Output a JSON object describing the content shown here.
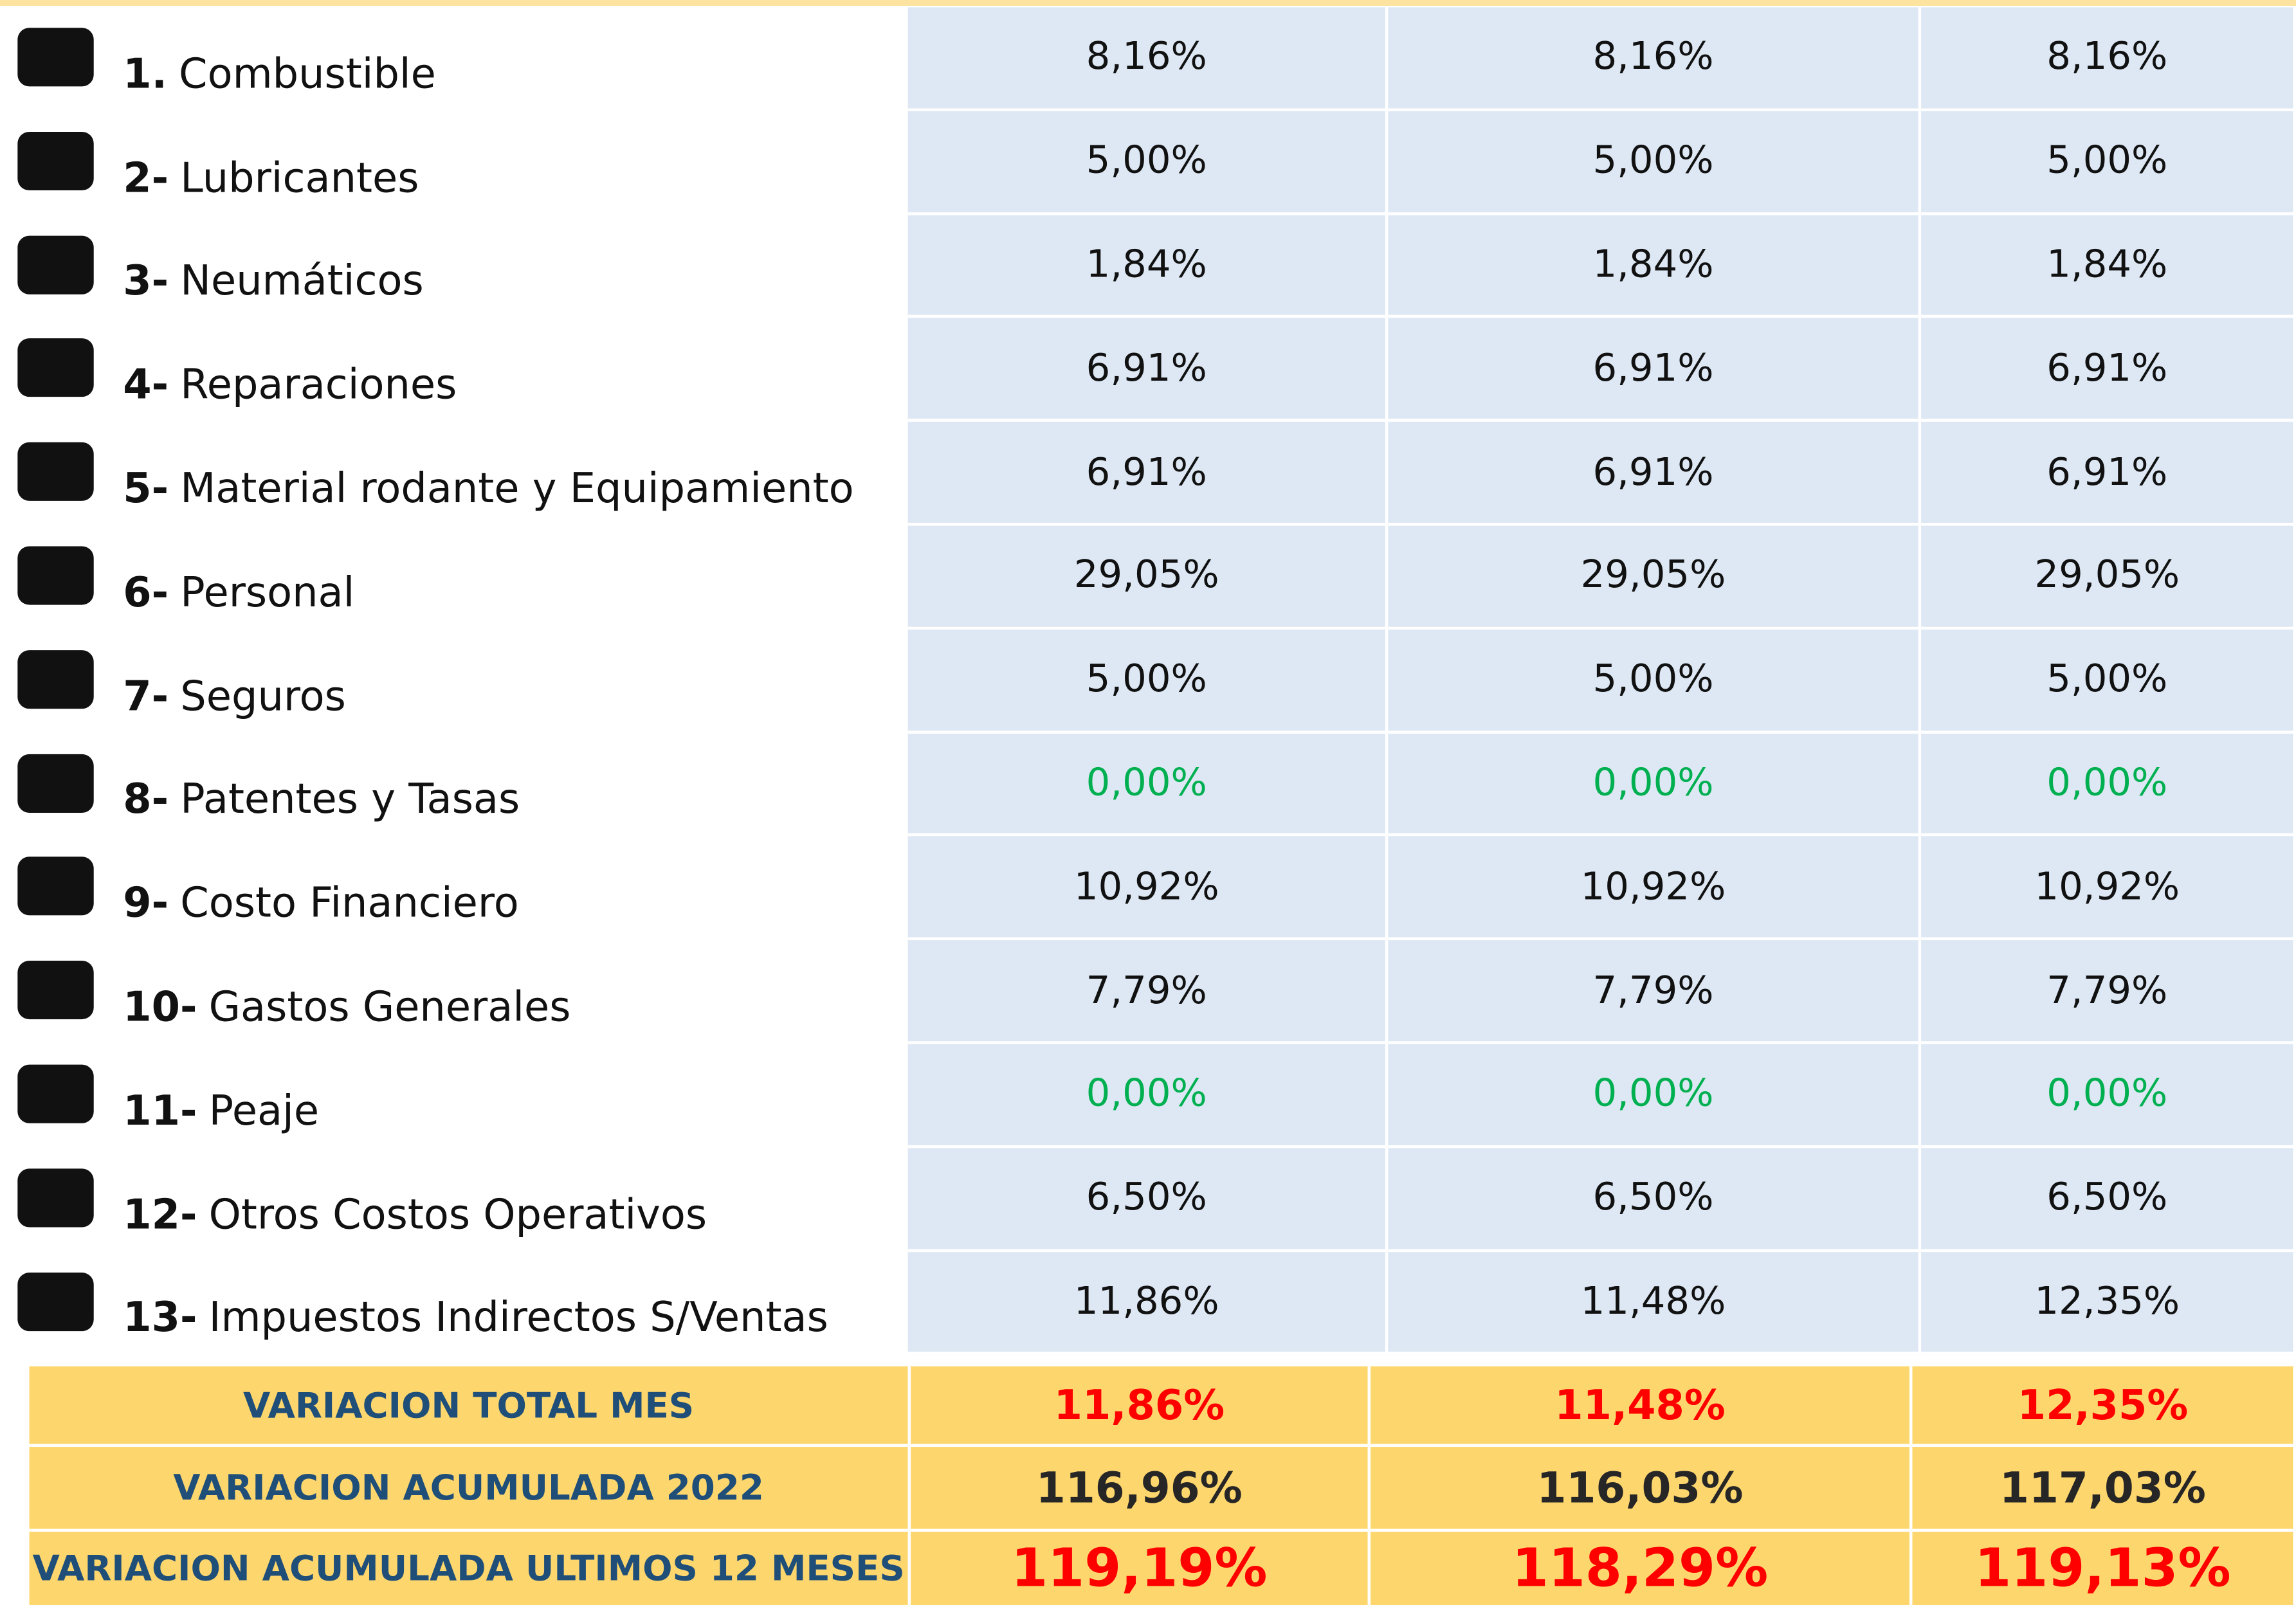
{
  "table": {
    "rows": [
      {
        "number": "1.",
        "label": "Combustible",
        "values": [
          "8,16%",
          "8,16%",
          "8,16%"
        ]
      },
      {
        "number": "2-",
        "label": "Lubricantes",
        "values": [
          "5,00%",
          "5,00%",
          "5,00%"
        ]
      },
      {
        "number": "3-",
        "label": "Neumáticos",
        "values": [
          "1,84%",
          "1,84%",
          "1,84%"
        ]
      },
      {
        "number": "4-",
        "label": "Reparaciones",
        "values": [
          "6,91%",
          "6,91%",
          "6,91%"
        ]
      },
      {
        "number": "5-",
        "label": "Material rodante y Equipamiento",
        "values": [
          "6,91%",
          "6,91%",
          "6,91%"
        ]
      },
      {
        "number": "6-",
        "label": "Personal",
        "values": [
          "29,05%",
          "29,05%",
          "29,05%"
        ]
      },
      {
        "number": "7-",
        "label": "Seguros",
        "values": [
          "5,00%",
          "5,00%",
          "5,00%"
        ]
      },
      {
        "number": "8-",
        "label": "Patentes y Tasas",
        "values": [
          "0,00%",
          "0,00%",
          "0,00%"
        ],
        "color": "#00b050"
      },
      {
        "number": "9-",
        "label": "Costo Financiero",
        "values": [
          "10,92%",
          "10,92%",
          "10,92%"
        ]
      },
      {
        "number": "10-",
        "label": "Gastos Generales",
        "values": [
          "7,79%",
          "7,79%",
          "7,79%"
        ]
      },
      {
        "number": "11-",
        "label": "Peaje",
        "values": [
          "0,00%",
          "0,00%",
          "0,00%"
        ],
        "color": "#00b050"
      },
      {
        "number": "12-",
        "label": "Otros Costos Operativos",
        "values": [
          "6,50%",
          "6,50%",
          "6,50%"
        ]
      },
      {
        "number": "13-",
        "label": "Impuestos Indirectos S/Ventas",
        "values": [
          "11,86%",
          "11,48%",
          "12,35%"
        ]
      }
    ],
    "summary": [
      {
        "label": "VARIACION TOTAL MES",
        "values": [
          "11,86%",
          "11,48%",
          "12,35%"
        ],
        "color": "#ff0000"
      },
      {
        "label": "VARIACION ACUMULADA 2022",
        "values": [
          "116,96%",
          "116,03%",
          "117,03%"
        ],
        "color": "#262626"
      },
      {
        "label": "VARIACION ACUMULADA ULTIMOS 12 MESES",
        "values": [
          "119,19%",
          "118,29%",
          "119,13%"
        ],
        "color": "#ff0000"
      }
    ]
  }
}
